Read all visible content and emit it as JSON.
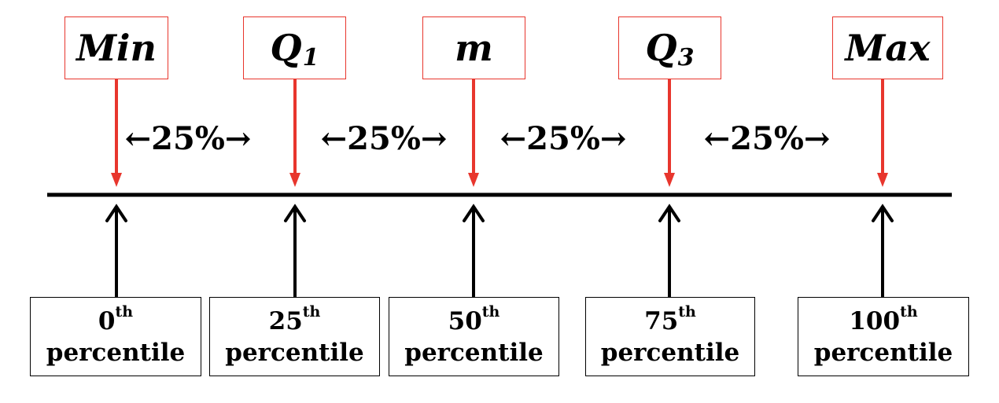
{
  "quantiles": [
    {
      "label": "Min",
      "sub": "",
      "percentile_num": "0",
      "percentile_sup": "th",
      "percentile_word": "percentile"
    },
    {
      "label": "Q",
      "sub": "1",
      "percentile_num": "25",
      "percentile_sup": "th",
      "percentile_word": "percentile"
    },
    {
      "label": "m",
      "sub": "",
      "percentile_num": "50",
      "percentile_sup": "th",
      "percentile_word": "percentile"
    },
    {
      "label": "Q",
      "sub": "3",
      "percentile_num": "75",
      "percentile_sup": "th",
      "percentile_word": "percentile"
    },
    {
      "label": "Max",
      "sub": "",
      "percentile_num": "100",
      "percentile_sup": "th",
      "percentile_word": "percentile"
    }
  ],
  "gaps": [
    "←25%→",
    "←25%→",
    "←25%→",
    "←25%→"
  ],
  "colors": {
    "top_arrow": "#e8362d",
    "top_box_border": "#e8362d",
    "axis": "#000000",
    "bottom_arrow": "#000000"
  }
}
